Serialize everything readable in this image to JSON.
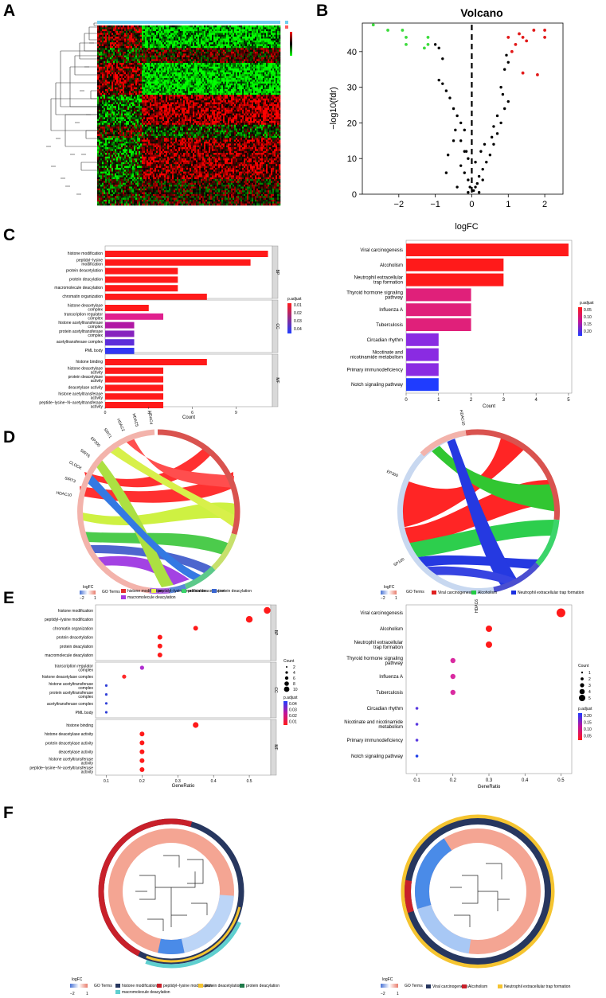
{
  "panel_letters": {
    "a": "A",
    "b": "B",
    "c": "C",
    "d": "D",
    "e": "E",
    "f": "F"
  },
  "colors": {
    "red": "#ff1a1a",
    "blue": "#1f3cff",
    "purple": "#8a2be2",
    "navy": "#27375f",
    "yellow": "#f5c430",
    "teal": "#5fcfcf",
    "green": "#2dbd2d",
    "lightblue": "#6aa8ff",
    "salmon": "#f4a593"
  },
  "chart_data": [
    {
      "id": "volcano",
      "type": "scatter",
      "title": "Volcano",
      "xlabel": "logFC",
      "ylabel": "−log10(fdr)",
      "xlim": [
        -3,
        2.5
      ],
      "ylim": [
        0,
        48
      ],
      "xticks": [
        "−2",
        "−1",
        "0",
        "1",
        "2"
      ],
      "yticks": [
        "0",
        "10",
        "20",
        "30",
        "40"
      ],
      "down": [
        [
          -2.7,
          47.5
        ],
        [
          -2.3,
          46
        ],
        [
          -1.9,
          46
        ],
        [
          -1.8,
          44
        ],
        [
          -1.8,
          42
        ],
        [
          -1.2,
          44
        ],
        [
          -1.2,
          42
        ],
        [
          -1.3,
          41
        ]
      ],
      "up": [
        [
          1.2,
          42
        ],
        [
          1.3,
          45
        ],
        [
          1.4,
          44
        ],
        [
          1.5,
          43
        ],
        [
          1.7,
          46
        ],
        [
          2.0,
          46
        ],
        [
          2.0,
          44
        ],
        [
          1.1,
          40
        ],
        [
          1.4,
          34
        ],
        [
          1.8,
          33.5
        ],
        [
          1.0,
          44
        ]
      ],
      "ns": [
        [
          -1.0,
          42
        ],
        [
          -0.9,
          41
        ],
        [
          -0.8,
          38
        ],
        [
          -0.9,
          32
        ],
        [
          -0.8,
          31
        ],
        [
          -0.7,
          29
        ],
        [
          -0.6,
          27
        ],
        [
          -0.5,
          24
        ],
        [
          -0.4,
          22
        ],
        [
          -0.3,
          20
        ],
        [
          -0.2,
          18
        ],
        [
          -0.3,
          15
        ],
        [
          -0.2,
          12
        ],
        [
          -0.1,
          10
        ],
        [
          -0.3,
          8
        ],
        [
          -0.2,
          6
        ],
        [
          -0.1,
          4
        ],
        [
          -0.05,
          2
        ],
        [
          0.05,
          1
        ],
        [
          0.1,
          2
        ],
        [
          0.15,
          3
        ],
        [
          0.2,
          5
        ],
        [
          0.3,
          7
        ],
        [
          0.4,
          9
        ],
        [
          0.5,
          11
        ],
        [
          0.6,
          14
        ],
        [
          0.7,
          17
        ],
        [
          0.8,
          20
        ],
        [
          0.9,
          24
        ],
        [
          1.0,
          26
        ],
        [
          0.8,
          30
        ],
        [
          0.9,
          35
        ],
        [
          1.0,
          37
        ],
        [
          0.95,
          39
        ],
        [
          -0.4,
          2
        ],
        [
          0.3,
          4
        ],
        [
          0.2,
          0.5
        ],
        [
          -0.1,
          0.5
        ],
        [
          0.1,
          9
        ],
        [
          -0.15,
          12
        ],
        [
          0.25,
          12
        ],
        [
          0.35,
          14
        ],
        [
          -0.5,
          15
        ],
        [
          -0.45,
          18
        ],
        [
          0.55,
          16
        ],
        [
          0.6,
          19
        ],
        [
          -0.7,
          6
        ],
        [
          -0.65,
          11
        ],
        [
          0.7,
          22
        ],
        [
          0.85,
          28
        ]
      ]
    },
    {
      "id": "go-bar",
      "type": "bar",
      "xlabel": "Count",
      "xticks": [
        "0",
        "3",
        "6",
        "9"
      ],
      "xlim": [
        0,
        11.5
      ],
      "legend_title": "p.adjust",
      "legend_ticks": [
        "0.01",
        "0.02",
        "0.03",
        "0.04"
      ],
      "groups": [
        {
          "name": "BP",
          "items": [
            [
              "histone modification",
              11.2
            ],
            [
              "peptidyl−lysine modification",
              10
            ],
            [
              "protein deacetylation",
              5
            ],
            [
              "protein deacylation",
              5
            ],
            [
              "macromolecule deacylation",
              5
            ],
            [
              "chromatin organization",
              7
            ]
          ]
        },
        {
          "name": "CC",
          "items": [
            [
              "histone deacetylase complex",
              3
            ],
            [
              "transcription regulator complex",
              4
            ],
            [
              "histone acetyltransferase complex",
              2
            ],
            [
              "protein acetyltransferase complex",
              2
            ],
            [
              "acetyltransferase complex",
              2
            ],
            [
              "PML body",
              2
            ]
          ]
        },
        {
          "name": "MF",
          "items": [
            [
              "histone binding",
              7
            ],
            [
              "histone deacetylase activity",
              4
            ],
            [
              "protein deacetylase activity",
              4
            ],
            [
              "deacetylase activity",
              4
            ],
            [
              "histone acetyltransferase activity",
              4
            ],
            [
              "peptide−lysine−N−acetyltransferase activity",
              4
            ]
          ]
        }
      ]
    },
    {
      "id": "kegg-bar",
      "type": "bar",
      "xlabel": "Count",
      "xticks": [
        "0",
        "1",
        "2",
        "3",
        "4",
        "5"
      ],
      "xlim": [
        0,
        5.1
      ],
      "legend_title": "p.adjust",
      "legend_ticks": [
        "0.05",
        "0.10",
        "0.15",
        "0.20"
      ],
      "items": [
        [
          "Viral carcinogenesis",
          5
        ],
        [
          "Alcoholism",
          3
        ],
        [
          "Neutrophil extracellular trap formation",
          3
        ],
        [
          "Thyroid hormone signaling pathway",
          2
        ],
        [
          "Influenza A",
          2
        ],
        [
          "Tuberculosis",
          2
        ],
        [
          "Circadian rhythm",
          1
        ],
        [
          "Nicotinate and nicotinamide metabolism",
          1
        ],
        [
          "Primary immunodeficiency",
          1
        ],
        [
          "Notch signaling pathway",
          1
        ]
      ]
    },
    {
      "id": "go-dot",
      "type": "scatter",
      "xlabel": "GeneRatio",
      "xticks": [
        "0.1",
        "0.2",
        "0.3",
        "0.4",
        "0.5"
      ],
      "legend_count_title": "Count",
      "legend_counts": [
        "2",
        "4",
        "6",
        "8",
        "10"
      ],
      "legend_p_title": "p.adjust",
      "legend_p_ticks": [
        "0.04",
        "0.03",
        "0.02",
        "0.01"
      ],
      "groups": [
        {
          "name": "BP",
          "items": [
            [
              "histone modification",
              0.55
            ],
            [
              "peptidyl−lysine modification",
              0.5
            ],
            [
              "chromatin organization",
              0.35
            ],
            [
              "protein deacetylation",
              0.25
            ],
            [
              "protein deacylation",
              0.25
            ],
            [
              "macromolecule deacylation",
              0.25
            ]
          ]
        },
        {
          "name": "CC",
          "items": [
            [
              "transcription regulator complex",
              0.2
            ],
            [
              "histone deacetylase complex",
              0.15
            ],
            [
              "histone acetyltransferase complex",
              0.1
            ],
            [
              "protein acetyltransferase complex",
              0.1
            ],
            [
              "acetyltransferase complex",
              0.1
            ],
            [
              "PML body",
              0.1
            ]
          ]
        },
        {
          "name": "MF",
          "items": [
            [
              "histone binding",
              0.35
            ],
            [
              "histone deacetylase activity",
              0.2
            ],
            [
              "protein deacetylase activity",
              0.2
            ],
            [
              "deacetylase activity",
              0.2
            ],
            [
              "histone acetyltransferase activity",
              0.2
            ],
            [
              "peptide−lysine−N−acetyltransferase activity",
              0.2
            ]
          ]
        }
      ]
    },
    {
      "id": "kegg-dot",
      "type": "scatter",
      "xlabel": "GeneRatio",
      "xticks": [
        "0.1",
        "0.2",
        "0.3",
        "0.4",
        "0.5"
      ],
      "legend_count_title": "Count",
      "legend_counts": [
        "1",
        "2",
        "3",
        "4",
        "5"
      ],
      "legend_p_title": "p.adjust",
      "legend_p_ticks": [
        "0.20",
        "0.15",
        "0.10",
        "0.05"
      ],
      "items": [
        [
          "Viral carcinogenesis",
          0.5
        ],
        [
          "Alcoholism",
          0.3
        ],
        [
          "Neutrophil extracellular trap formation",
          0.3
        ],
        [
          "Thyroid hormone signaling pathway",
          0.2
        ],
        [
          "Influenza A",
          0.2
        ],
        [
          "Tuberculosis",
          0.2
        ],
        [
          "Circadian rhythm",
          0.1
        ],
        [
          "Nicotinate and nicotinamide metabolism",
          0.1
        ],
        [
          "Primary immunodeficiency",
          0.1
        ],
        [
          "Notch signaling pathway",
          0.1
        ]
      ]
    }
  ],
  "chord": {
    "left_genes": [
      "HDAC4",
      "HDAC5",
      "HDAC2",
      "SIRT1",
      "EP300",
      "SIRT6",
      "CLOCK",
      "SIRT3",
      "HDAC10"
    ],
    "left_terms": [
      "histone modification",
      "peptidyl−lysine modification",
      "protein deacetylation",
      "protein deacylation",
      "macromolecule deacylation"
    ],
    "right_genes": [
      "HDAC10",
      "EP300",
      "SP100",
      "HDAC6",
      "HDAC10"
    ],
    "right_terms": [
      "Viral carcinogenesis",
      "Alcoholism",
      "Neutrophil extracellular trap formation"
    ],
    "logfc_label": "logFC",
    "go_terms_label": "GO Terms",
    "scale_low": "−2",
    "scale_high": "1"
  },
  "circ": {
    "left_terms": [
      "histone modification",
      "peptidyl−lysine modification",
      "protein deacetylation",
      "protein deacylation",
      "macromolecule deacylation"
    ],
    "right_terms": [
      "Viral carcinogenesis",
      "Alcoholism",
      "Neutrophil extracellular trap formation"
    ],
    "logfc_label": "logFC",
    "go_terms_label": "GO Terms",
    "scale_low": "−2",
    "scale_high": "1"
  }
}
